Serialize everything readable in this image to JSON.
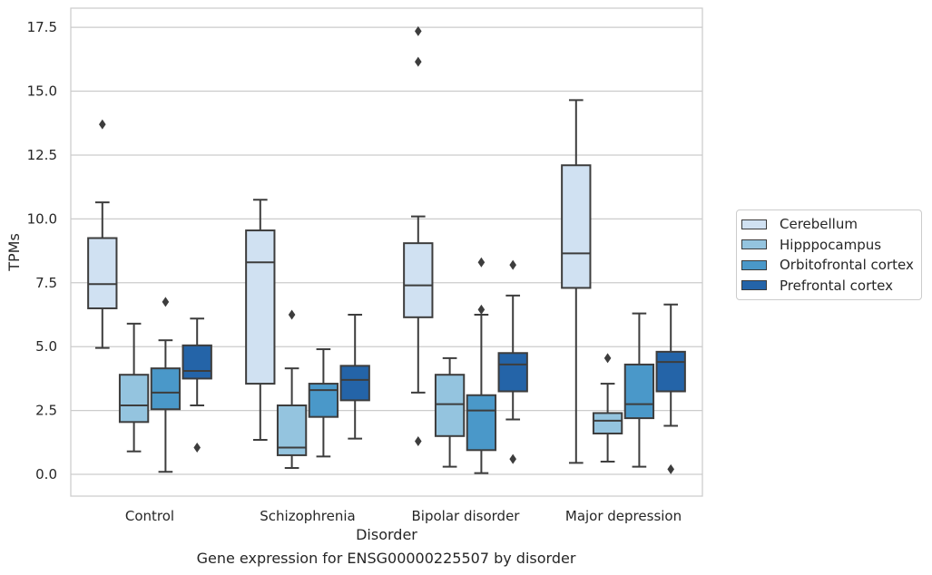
{
  "chart_data": {
    "type": "boxplot",
    "title": "Gene expression for ENSG00000225507 by disorder",
    "xlabel": "Disorder",
    "ylabel": "TPMs",
    "ylim": [
      -0.85,
      18.25
    ],
    "yticks": [
      "0.0",
      "2.5",
      "5.0",
      "7.5",
      "10.0",
      "12.5",
      "15.0",
      "17.5"
    ],
    "categories": [
      "Control",
      "Schizophrenia",
      "Bipolar disorder",
      "Major depression"
    ],
    "grid": "horizontal",
    "legend_position": "right",
    "series": [
      {
        "name": "Cerebellum",
        "color": "#d0e1f2",
        "boxes": [
          {
            "whisker_low": 4.95,
            "q1": 6.5,
            "median": 7.45,
            "q3": 9.25,
            "whisker_high": 10.65,
            "outliers": [
              13.7
            ]
          },
          {
            "whisker_low": 1.35,
            "q1": 3.55,
            "median": 8.3,
            "q3": 9.55,
            "whisker_high": 10.75,
            "outliers": []
          },
          {
            "whisker_low": 3.2,
            "q1": 6.15,
            "median": 7.4,
            "q3": 9.05,
            "whisker_high": 10.1,
            "outliers": [
              1.3,
              16.15,
              17.35
            ]
          },
          {
            "whisker_low": 0.45,
            "q1": 7.3,
            "median": 8.65,
            "q3": 12.1,
            "whisker_high": 14.65,
            "outliers": []
          }
        ]
      },
      {
        "name": "Hipppocampus",
        "color": "#94c4df",
        "boxes": [
          {
            "whisker_low": 0.9,
            "q1": 2.05,
            "median": 2.7,
            "q3": 3.9,
            "whisker_high": 5.9,
            "outliers": []
          },
          {
            "whisker_low": 0.25,
            "q1": 0.75,
            "median": 1.05,
            "q3": 2.7,
            "whisker_high": 4.15,
            "outliers": [
              6.25
            ]
          },
          {
            "whisker_low": 0.3,
            "q1": 1.5,
            "median": 2.75,
            "q3": 3.9,
            "whisker_high": 4.55,
            "outliers": []
          },
          {
            "whisker_low": 0.5,
            "q1": 1.6,
            "median": 2.1,
            "q3": 2.4,
            "whisker_high": 3.55,
            "outliers": [
              4.55
            ]
          }
        ]
      },
      {
        "name": "Orbitofrontal cortex",
        "color": "#4a98c9",
        "boxes": [
          {
            "whisker_low": 0.1,
            "q1": 2.55,
            "median": 3.2,
            "q3": 4.15,
            "whisker_high": 5.25,
            "outliers": [
              6.75
            ]
          },
          {
            "whisker_low": 0.7,
            "q1": 2.25,
            "median": 3.3,
            "q3": 3.55,
            "whisker_high": 4.9,
            "outliers": []
          },
          {
            "whisker_low": 0.05,
            "q1": 0.95,
            "median": 2.5,
            "q3": 3.1,
            "whisker_high": 6.25,
            "outliers": [
              6.45,
              8.3
            ]
          },
          {
            "whisker_low": 0.3,
            "q1": 2.2,
            "median": 2.75,
            "q3": 4.3,
            "whisker_high": 6.3,
            "outliers": []
          }
        ]
      },
      {
        "name": "Prefrontal cortex",
        "color": "#2464a8",
        "boxes": [
          {
            "whisker_low": 2.7,
            "q1": 3.75,
            "median": 4.05,
            "q3": 5.05,
            "whisker_high": 6.1,
            "outliers": [
              1.05
            ]
          },
          {
            "whisker_low": 1.4,
            "q1": 2.9,
            "median": 3.7,
            "q3": 4.25,
            "whisker_high": 6.25,
            "outliers": []
          },
          {
            "whisker_low": 2.15,
            "q1": 3.25,
            "median": 4.3,
            "q3": 4.75,
            "whisker_high": 7.0,
            "outliers": [
              0.6,
              8.2
            ]
          },
          {
            "whisker_low": 1.9,
            "q1": 3.25,
            "median": 4.4,
            "q3": 4.8,
            "whisker_high": 6.65,
            "outliers": [
              0.2
            ]
          }
        ]
      }
    ]
  }
}
